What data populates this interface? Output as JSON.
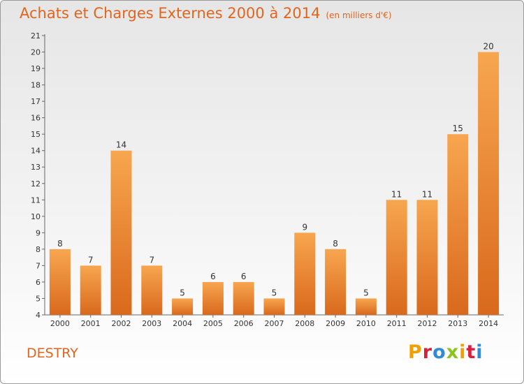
{
  "title": "Achats et Charges Externes 2000 à 2014",
  "subtitle": "(en milliers d'€)",
  "commune": "DESTRY",
  "logo": {
    "text": "Proxiti",
    "colors": [
      "#f0a000",
      "#d81f3c",
      "#2f8ad8",
      "#8dc21f",
      "#f0a000",
      "#d81f3c",
      "#2f8ad8"
    ]
  },
  "chart_data": {
    "type": "bar",
    "title": "Achats et Charges Externes 2000 à 2014",
    "subtitle": "(en milliers d'€)",
    "categories": [
      "2000",
      "2001",
      "2002",
      "2003",
      "2004",
      "2005",
      "2006",
      "2007",
      "2008",
      "2009",
      "2010",
      "2011",
      "2012",
      "2013",
      "2014"
    ],
    "values": [
      8,
      7,
      14,
      7,
      5,
      6,
      6,
      5,
      9,
      8,
      5,
      11,
      11,
      15,
      20
    ],
    "data_labels": [
      "8",
      "7",
      "14",
      "7",
      "5",
      "6",
      "6",
      "5",
      "9",
      "8",
      "5",
      "11",
      "11",
      "15",
      "20"
    ],
    "ylim": [
      4,
      21
    ],
    "yticks": [
      4,
      5,
      6,
      7,
      8,
      9,
      10,
      11,
      12,
      13,
      14,
      15,
      16,
      17,
      18,
      19,
      20,
      21
    ],
    "grid": false,
    "bar_color_top": "#f7a64f",
    "bar_color_bottom": "#d9691c"
  }
}
